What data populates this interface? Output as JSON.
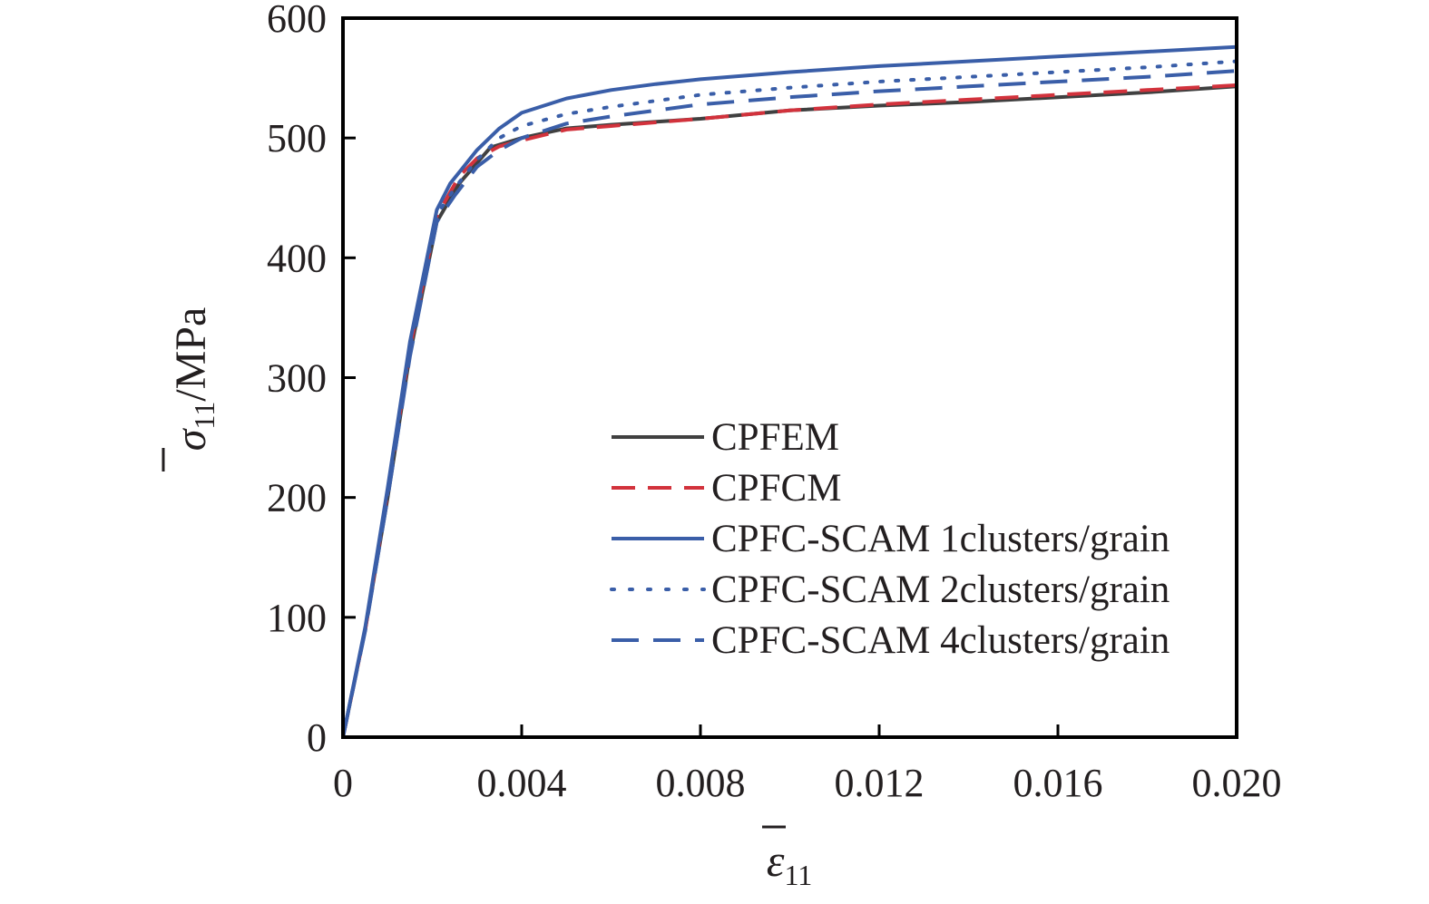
{
  "chart_data": {
    "type": "line",
    "title": "",
    "xlabel": {
      "symbol": "ε",
      "subscript": "11"
    },
    "ylabel": {
      "symbol": "σ",
      "subscript": "11",
      "unit": "/MPa"
    },
    "xlim": [
      0,
      0.02
    ],
    "ylim": [
      0,
      600
    ],
    "xticks": [
      0,
      0.004,
      0.008,
      0.012,
      0.016,
      0.02
    ],
    "xtick_labels": [
      "0",
      "0.004",
      "0.008",
      "0.012",
      "0.016",
      "0.020"
    ],
    "yticks": [
      0,
      100,
      200,
      300,
      400,
      500,
      600
    ],
    "ytick_labels": [
      "0",
      "100",
      "200",
      "300",
      "400",
      "500",
      "600"
    ],
    "grid": false,
    "legend_position": "bottom-right",
    "series": [
      {
        "name": "CPFEM",
        "color": "#404040",
        "dash": "solid",
        "x": [
          0,
          0.0005,
          0.001,
          0.0015,
          0.0021,
          0.0026,
          0.0033,
          0.004,
          0.005,
          0.006,
          0.008,
          0.01,
          0.012,
          0.014,
          0.016,
          0.018,
          0.02
        ],
        "y": [
          0,
          90,
          200,
          320,
          430,
          462,
          492,
          500,
          508,
          511,
          516,
          523,
          527,
          530,
          534,
          538,
          543
        ]
      },
      {
        "name": "CPFCM",
        "color": "#d2323c",
        "dash": "dashed",
        "x": [
          0,
          0.0005,
          0.001,
          0.0015,
          0.0021,
          0.0026,
          0.003,
          0.0035,
          0.004,
          0.005,
          0.006,
          0.008,
          0.01,
          0.012,
          0.014,
          0.016,
          0.018,
          0.02
        ],
        "y": [
          0,
          90,
          205,
          325,
          435,
          468,
          483,
          493,
          498,
          507,
          510,
          516,
          523,
          528,
          532,
          536,
          540,
          544
        ]
      },
      {
        "name": "CPFC-SCAM 1clusters/grain",
        "color": "#3a5ea8",
        "dash": "solid",
        "x": [
          0,
          0.0005,
          0.001,
          0.0015,
          0.0021,
          0.0024,
          0.003,
          0.0035,
          0.004,
          0.005,
          0.006,
          0.007,
          0.008,
          0.01,
          0.012,
          0.014,
          0.016,
          0.018,
          0.02
        ],
        "y": [
          0,
          92,
          208,
          330,
          440,
          462,
          490,
          508,
          521,
          533,
          540,
          545,
          549,
          555,
          560,
          564,
          568,
          572,
          576
        ]
      },
      {
        "name": "CPFC-SCAM 2clusters/grain",
        "color": "#3a5ea8",
        "dash": "dotted",
        "x": [
          0,
          0.0005,
          0.001,
          0.0015,
          0.0021,
          0.0025,
          0.003,
          0.0035,
          0.004,
          0.005,
          0.006,
          0.008,
          0.01,
          0.012,
          0.014,
          0.016,
          0.018,
          0.02
        ],
        "y": [
          0,
          90,
          204,
          325,
          436,
          458,
          482,
          500,
          510,
          520,
          526,
          536,
          542,
          547,
          551,
          555,
          559,
          564
        ]
      },
      {
        "name": "CPFC-SCAM 4clusters/grain",
        "color": "#3a5ea8",
        "dash": "longdash",
        "x": [
          0,
          0.0005,
          0.001,
          0.0015,
          0.0021,
          0.0025,
          0.003,
          0.0035,
          0.004,
          0.005,
          0.006,
          0.008,
          0.01,
          0.012,
          0.014,
          0.016,
          0.018,
          0.02
        ],
        "y": [
          0,
          89,
          200,
          318,
          430,
          452,
          476,
          490,
          500,
          512,
          518,
          528,
          534,
          539,
          543,
          547,
          551,
          556
        ]
      }
    ]
  }
}
